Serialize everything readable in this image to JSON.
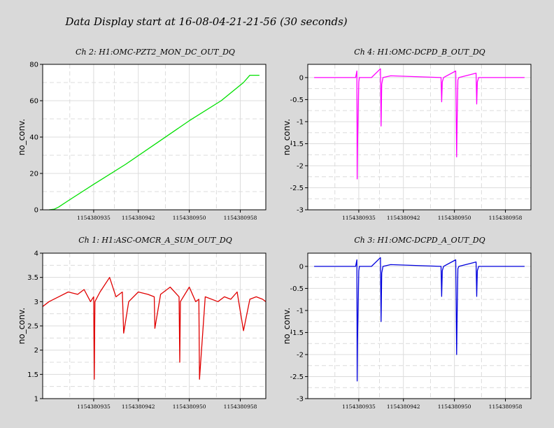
{
  "main_title": "Data Display start at 16-08-04-21-21-56 (30 seconds)",
  "chart_data": [
    {
      "type": "line",
      "title": "Ch 2: H1:OMC-PZT2_MON_DC_OUT_DQ",
      "ylabel": "no_conv.",
      "xlabel": "",
      "color": "#00e000",
      "ylim": [
        0,
        80
      ],
      "yticks": [
        0,
        20,
        40,
        60,
        80
      ],
      "ytick_labels": [
        "0",
        "20",
        "40",
        "60",
        "80"
      ],
      "xlim": [
        1154380927,
        1154380962
      ],
      "xticks": [
        1154380935,
        1154380942,
        1154380950,
        1154380958
      ],
      "xtick_labels": [
        "1154380935",
        "1154380942",
        "1154380950",
        "1154380958"
      ],
      "grid": true,
      "x": [
        1154380928,
        1154380928.8,
        1154380929.5,
        1154380931,
        1154380935,
        1154380940,
        1154380945,
        1154380950,
        1154380955,
        1154380958.5,
        1154380959.5,
        1154380961
      ],
      "y": [
        0,
        0.3,
        1.5,
        5,
        14,
        25,
        37,
        49,
        60,
        70,
        74,
        74
      ]
    },
    {
      "type": "line",
      "title": "Ch 4: H1:OMC-DCPD_B_OUT_DQ",
      "ylabel": "no_conv.",
      "xlabel": "",
      "color": "#ff00ff",
      "ylim": [
        -3,
        0.3
      ],
      "yticks": [
        -3,
        -2.5,
        -2,
        -1.5,
        -1,
        -0.5,
        0
      ],
      "ytick_labels": [
        "-3",
        "-2.5",
        "-2",
        "-1.5",
        "-1",
        "-0.5",
        "0"
      ],
      "xlim": [
        1154380927,
        1154380962
      ],
      "xticks": [
        1154380935,
        1154380942,
        1154380950,
        1154380958
      ],
      "xtick_labels": [
        "1154380935",
        "1154380942",
        "1154380950",
        "1154380958"
      ],
      "grid": true,
      "x": [
        1154380928,
        1154380934.5,
        1154380934.7,
        1154380934.75,
        1154380934.8,
        1154380935.0,
        1154380935.1,
        1154380937,
        1154380938.4,
        1154380938.5,
        1154380938.6,
        1154380938.8,
        1154380940,
        1154380947.9,
        1154380948.0,
        1154380948.1,
        1154380948.3,
        1154380950.2,
        1154380950.35,
        1154380950.45,
        1154380950.55,
        1154380950.7,
        1154380953.4,
        1154380953.5,
        1154380953.6,
        1154380953.8,
        1154380961
      ],
      "y": [
        0,
        0,
        0.15,
        -2.3,
        -1.6,
        -0.1,
        0,
        0,
        0.2,
        -1.1,
        -0.15,
        0,
        0.04,
        0,
        -0.55,
        -0.1,
        0,
        0.15,
        -1.8,
        -0.8,
        -0.05,
        0,
        0.1,
        -0.6,
        -0.1,
        0,
        0
      ]
    },
    {
      "type": "line",
      "title": "Ch 1: H1:ASC-OMCR_A_SUM_OUT_DQ",
      "ylabel": "no_conv.",
      "xlabel": "",
      "color": "#e00000",
      "ylim": [
        1,
        4
      ],
      "yticks": [
        1,
        1.5,
        2,
        2.5,
        3,
        3.5,
        4
      ],
      "ytick_labels": [
        "1",
        "1.5",
        "2",
        "2.5",
        "3",
        "3.5",
        "4"
      ],
      "xlim": [
        1154380927,
        1154380962
      ],
      "xticks": [
        1154380935,
        1154380942,
        1154380950,
        1154380958
      ],
      "xtick_labels": [
        "1154380935",
        "1154380942",
        "1154380950",
        "1154380958"
      ],
      "grid": true,
      "x": [
        1154380927,
        1154380928,
        1154380929.5,
        1154380931,
        1154380932.5,
        1154380933.5,
        1154380934.5,
        1154380935.0,
        1154380935.1,
        1154380935.2,
        1154380936,
        1154380937.5,
        1154380938.5,
        1154380939.5,
        1154380939.7,
        1154380940.5,
        1154380942,
        1154380943.5,
        1154380944.5,
        1154380944.6,
        1154380945.5,
        1154380947,
        1154380948.4,
        1154380948.5,
        1154380948.6,
        1154380950,
        1154380951,
        1154380951.5,
        1154380951.6,
        1154380952.5,
        1154380954.5,
        1154380955.5,
        1154380956.5,
        1154380957.5,
        1154380958.5,
        1154380959.5,
        1154380960.5,
        1154380961.5,
        1154380962
      ],
      "y": [
        2.9,
        3.0,
        3.1,
        3.2,
        3.15,
        3.25,
        3.0,
        3.1,
        1.4,
        3.0,
        3.2,
        3.5,
        3.1,
        3.2,
        2.35,
        3.0,
        3.2,
        3.15,
        3.1,
        2.45,
        3.15,
        3.3,
        3.1,
        1.75,
        3.0,
        3.3,
        3.0,
        3.05,
        1.4,
        3.1,
        3.0,
        3.1,
        3.05,
        3.2,
        2.4,
        3.05,
        3.1,
        3.05,
        3.0
      ]
    },
    {
      "type": "line",
      "title": "Ch 3: H1:OMC-DCPD_A_OUT_DQ",
      "ylabel": "no_conv.",
      "xlabel": "",
      "color": "#0000dd",
      "ylim": [
        -3,
        0.3
      ],
      "yticks": [
        -3,
        -2.5,
        -2,
        -1.5,
        -1,
        -0.5,
        0
      ],
      "ytick_labels": [
        "-3",
        "-2.5",
        "-2",
        "-1.5",
        "-1",
        "-0.5",
        "0"
      ],
      "xlim": [
        1154380927,
        1154380962
      ],
      "xticks": [
        1154380935,
        1154380942,
        1154380950,
        1154380958
      ],
      "xtick_labels": [
        "1154380935",
        "1154380942",
        "1154380950",
        "1154380958"
      ],
      "grid": true,
      "x": [
        1154380928,
        1154380934.5,
        1154380934.7,
        1154380934.75,
        1154380934.8,
        1154380935.0,
        1154380935.1,
        1154380937,
        1154380938.4,
        1154380938.5,
        1154380938.6,
        1154380938.8,
        1154380940,
        1154380947.9,
        1154380948.0,
        1154380948.1,
        1154380948.3,
        1154380950.2,
        1154380950.35,
        1154380950.45,
        1154380950.55,
        1154380950.7,
        1154380953.4,
        1154380953.5,
        1154380953.6,
        1154380953.8,
        1154380961
      ],
      "y": [
        0,
        0,
        0.15,
        -2.6,
        -1.7,
        -0.1,
        0,
        0,
        0.2,
        -1.25,
        -0.15,
        0,
        0.04,
        0,
        -0.68,
        -0.1,
        0,
        0.15,
        -2.0,
        -0.9,
        -0.05,
        0,
        0.1,
        -0.68,
        -0.1,
        0,
        0
      ]
    }
  ]
}
